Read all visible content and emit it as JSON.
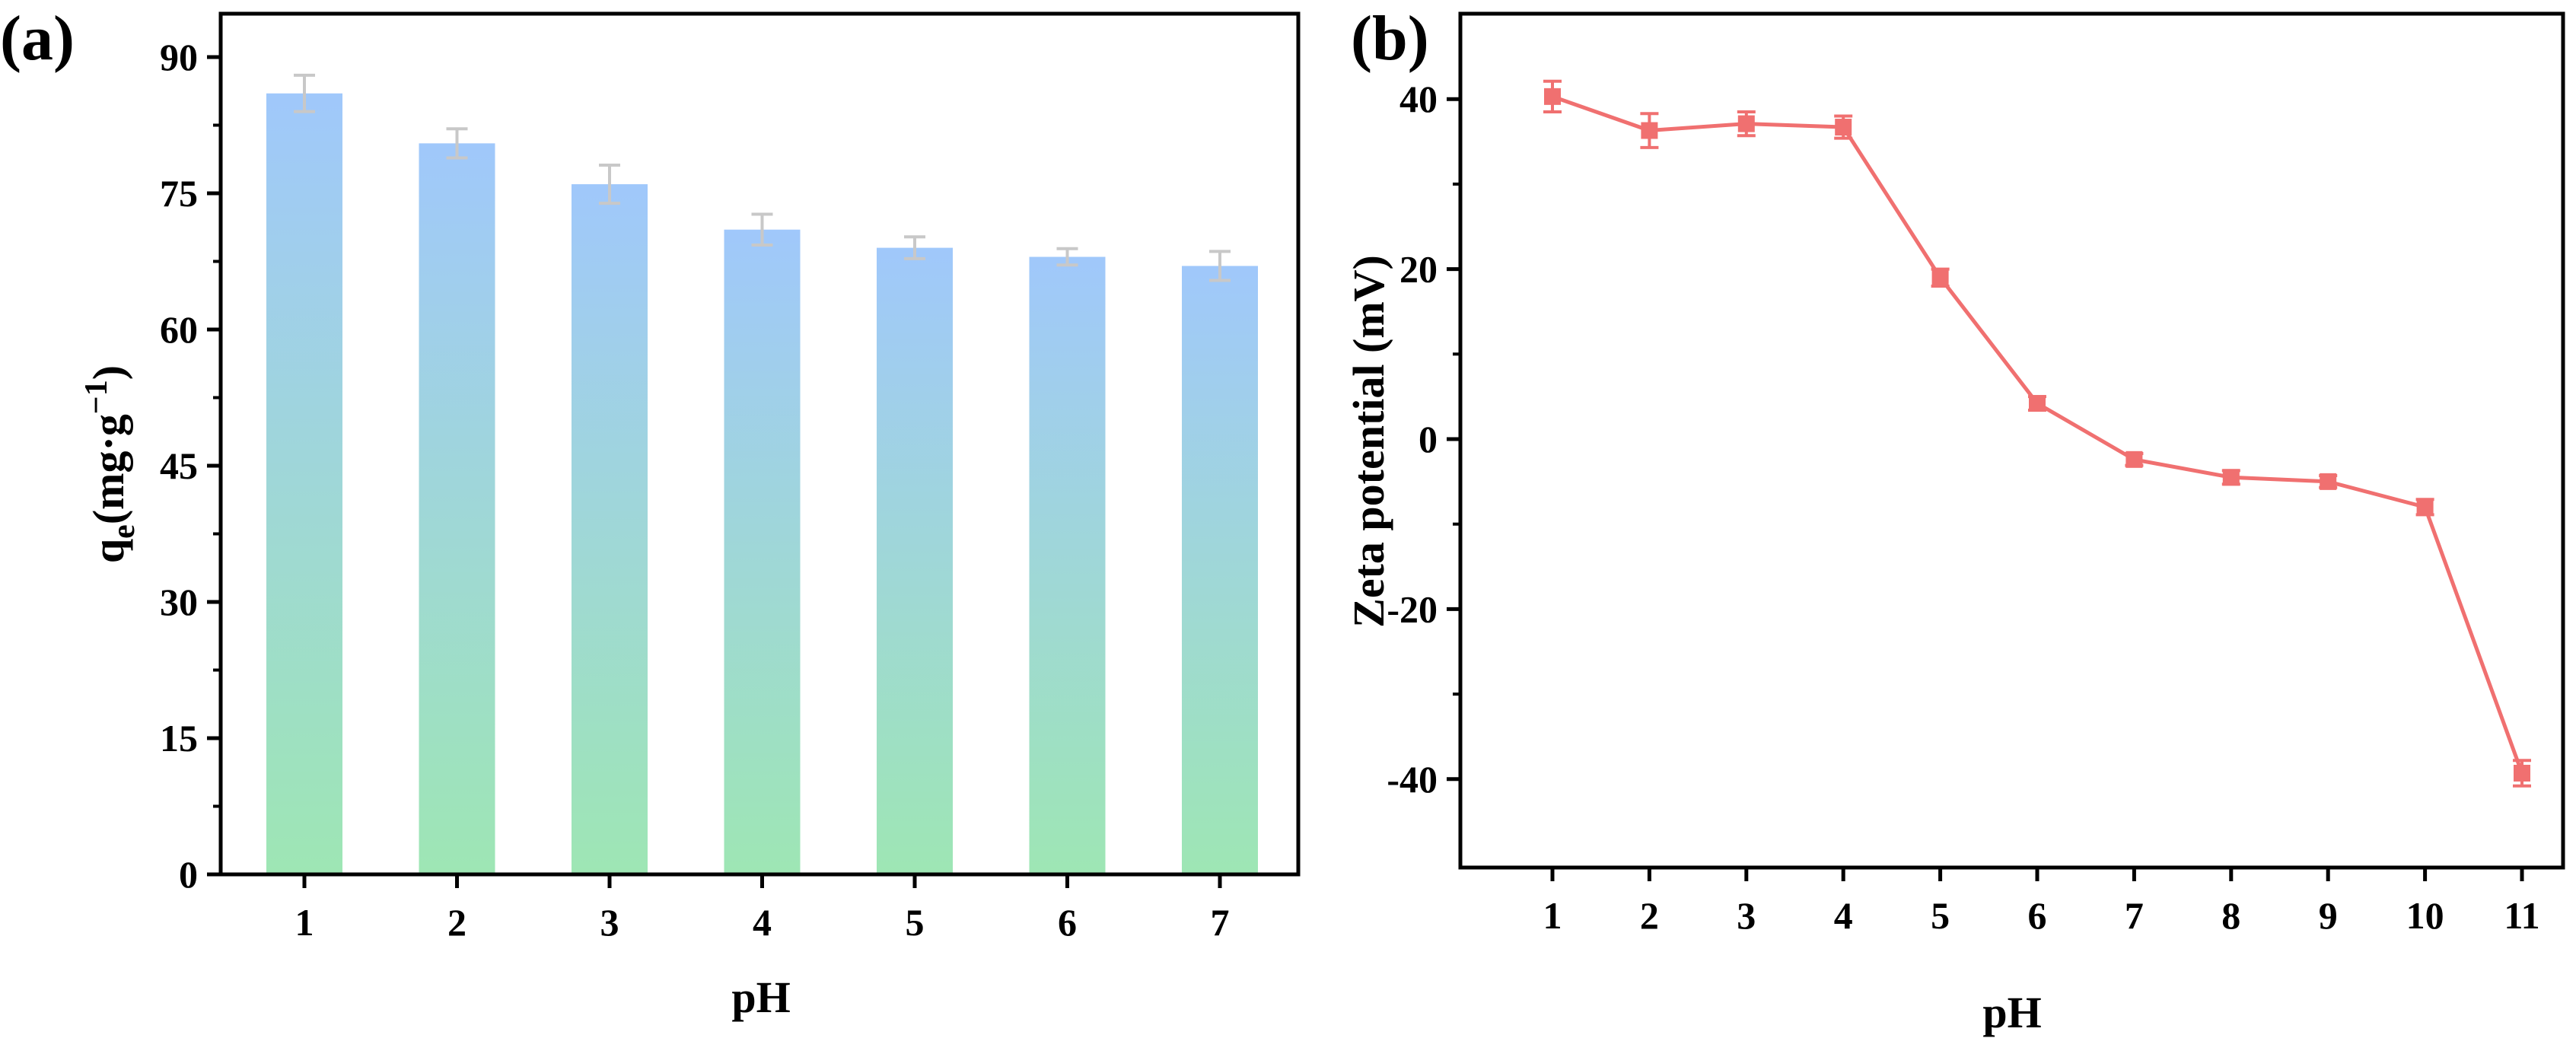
{
  "chart_data": [
    {
      "panel": "(a)",
      "type": "bar",
      "xlabel": "pH",
      "ylabel": {
        "base": "q",
        "sub": "e",
        "rest": "(mg·g",
        "sup": "−1",
        "close": ")"
      },
      "categories": [
        "1",
        "2",
        "3",
        "4",
        "5",
        "6",
        "7"
      ],
      "values": [
        86,
        80.5,
        76,
        71,
        69,
        68,
        67
      ],
      "errors": [
        2.0,
        1.6,
        2.1,
        1.7,
        1.2,
        0.9,
        1.6
      ],
      "ylim": [
        0,
        90
      ],
      "yticks": [
        0,
        15,
        30,
        45,
        60,
        75,
        90
      ],
      "bar_gradient": {
        "top": "#a0c8fb",
        "bottom": "#9ee6b4"
      },
      "errorbar_color": "#c8c8c8",
      "grid": false
    },
    {
      "panel": "(b)",
      "type": "line",
      "xlabel": "pH",
      "ylabel": "Zeta potential (mV)",
      "x": [
        1,
        2,
        3,
        4,
        5,
        6,
        7,
        8,
        9,
        10,
        11
      ],
      "values": [
        40.3,
        36.3,
        37.1,
        36.7,
        19.0,
        4.2,
        -2.4,
        -4.5,
        -5.0,
        -8.0,
        -39.3
      ],
      "errors": [
        1.8,
        2.0,
        1.4,
        1.3,
        1.0,
        0.8,
        0.7,
        0.8,
        0.7,
        0.9,
        1.5
      ],
      "xticks": [
        "1",
        "2",
        "3",
        "4",
        "5",
        "6",
        "7",
        "8",
        "9",
        "10",
        "11"
      ],
      "ylim": [
        -50,
        50
      ],
      "yticks": [
        -40,
        -20,
        0,
        20,
        40
      ],
      "ytick_labels": [
        "-40",
        "-20",
        "0",
        "20",
        "40"
      ],
      "line_color": "#f07070",
      "marker": "square",
      "grid": false
    }
  ]
}
